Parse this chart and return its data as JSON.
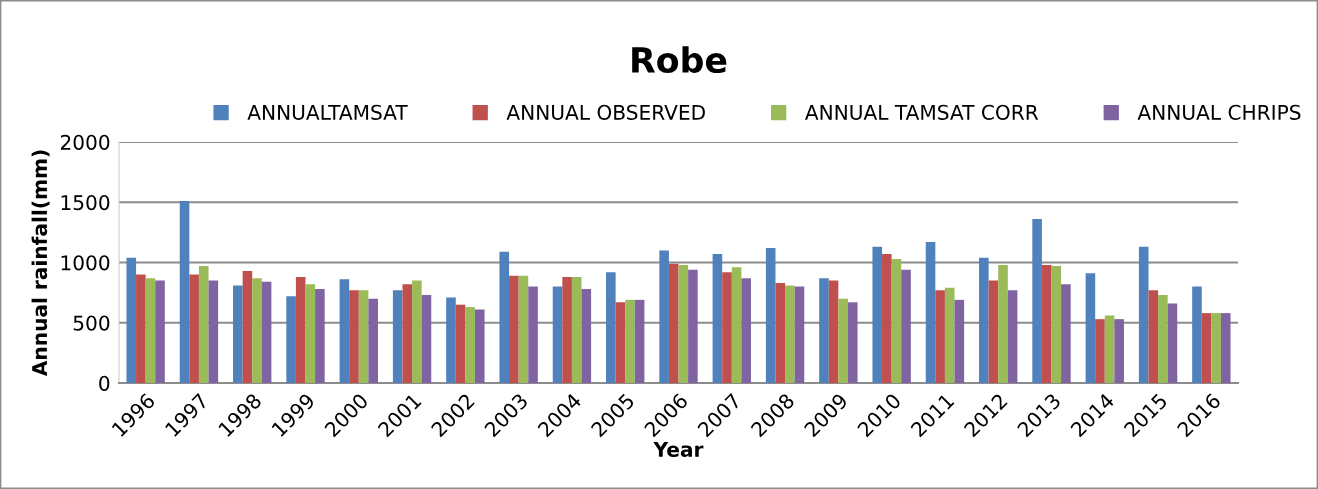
{
  "chart_data": {
    "type": "bar",
    "title": "Robe",
    "xlabel": "Year",
    "ylabel": "Annual rainfall(mm)",
    "categories": [
      "1996",
      "1997",
      "1998",
      "1999",
      "2000",
      "2001",
      "2002",
      "2003",
      "2004",
      "2005",
      "2006",
      "2007",
      "2008",
      "2009",
      "2010",
      "2011",
      "2012",
      "2013",
      "2014",
      "2015",
      "2016"
    ],
    "series": [
      {
        "name": "ANNUALTAMSAT",
        "color": "#4f81bd",
        "values": [
          1040,
          1510,
          810,
          720,
          860,
          770,
          710,
          1090,
          800,
          920,
          1100,
          1070,
          1120,
          870,
          1130,
          1170,
          1040,
          1360,
          910,
          1130,
          800
        ]
      },
      {
        "name": "ANNUAL OBSERVED",
        "color": "#c0504d",
        "values": [
          900,
          900,
          930,
          880,
          770,
          820,
          650,
          890,
          880,
          670,
          990,
          920,
          830,
          850,
          1070,
          770,
          850,
          980,
          530,
          770,
          580
        ]
      },
      {
        "name": "ANNUAL TAMSAT CORR",
        "color": "#9bbb59",
        "values": [
          870,
          970,
          870,
          820,
          770,
          850,
          630,
          890,
          880,
          690,
          980,
          960,
          810,
          700,
          1030,
          790,
          980,
          970,
          560,
          730,
          580
        ]
      },
      {
        "name": "ANNUAL CHRIPS",
        "color": "#8064a2",
        "values": [
          850,
          850,
          840,
          780,
          700,
          730,
          610,
          800,
          780,
          690,
          940,
          870,
          800,
          670,
          940,
          690,
          770,
          820,
          530,
          660,
          580
        ]
      }
    ],
    "ylim": [
      0,
      2000
    ],
    "yticks": [
      0,
      500,
      1000,
      1500,
      2000
    ],
    "grid": "y",
    "legend": "top"
  }
}
